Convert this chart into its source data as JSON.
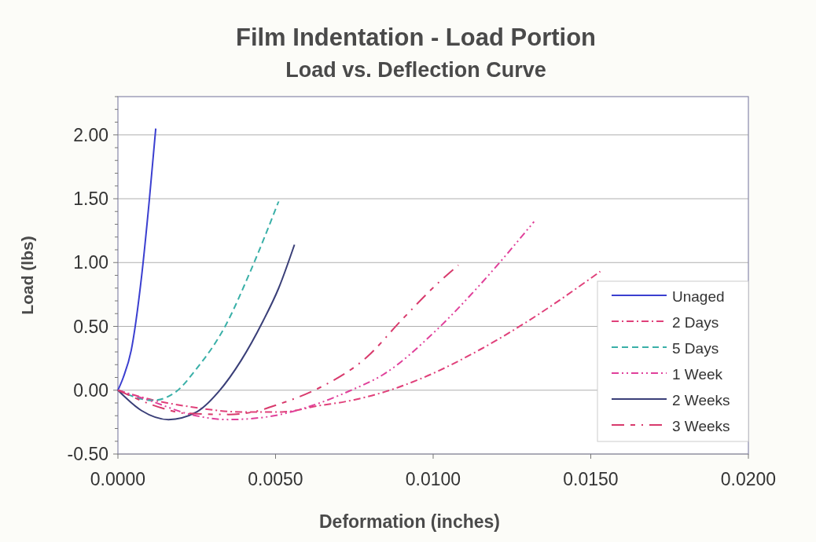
{
  "chart_data": {
    "type": "line",
    "title": "Film Indentation - Load Portion",
    "subtitle": "Load vs. Deflection Curve",
    "xlabel": "Deformation (inches)",
    "ylabel": "Load (lbs)",
    "xlim": [
      0,
      0.02
    ],
    "xticks": [
      {
        "value": 0,
        "label": "0.0000"
      },
      {
        "value": 0.005,
        "label": "0.0050"
      },
      {
        "value": 0.01,
        "label": "0.0100"
      },
      {
        "value": 0.015,
        "label": "0.0150"
      },
      {
        "value": 0.02,
        "label": "0.0200"
      }
    ],
    "ylim": [
      -0.5,
      2.3
    ],
    "yticks": [
      {
        "value": -0.5,
        "label": "-0.50"
      },
      {
        "value": -0.4,
        "label": null
      },
      {
        "value": -0.3,
        "label": null
      },
      {
        "value": -0.2,
        "label": null
      },
      {
        "value": -0.1,
        "label": null
      },
      {
        "value": 0,
        "label": "0.00"
      },
      {
        "value": 0.1,
        "label": null
      },
      {
        "value": 0.2,
        "label": null
      },
      {
        "value": 0.3,
        "label": null
      },
      {
        "value": 0.4,
        "label": null
      },
      {
        "value": 0.5,
        "label": "0.50"
      },
      {
        "value": 0.6,
        "label": null
      },
      {
        "value": 0.7,
        "label": null
      },
      {
        "value": 0.8,
        "label": null
      },
      {
        "value": 0.9,
        "label": null
      },
      {
        "value": 1,
        "label": "1.00"
      },
      {
        "value": 1.1,
        "label": null
      },
      {
        "value": 1.2,
        "label": null
      },
      {
        "value": 1.3,
        "label": null
      },
      {
        "value": 1.4,
        "label": null
      },
      {
        "value": 1.5,
        "label": "1.50"
      },
      {
        "value": 1.6,
        "label": null
      },
      {
        "value": 1.7,
        "label": null
      },
      {
        "value": 1.8,
        "label": null
      },
      {
        "value": 1.9,
        "label": null
      },
      {
        "value": 2,
        "label": "2.00"
      },
      {
        "value": 2.1,
        "label": null
      },
      {
        "value": 2.2,
        "label": null
      },
      {
        "value": 2.3,
        "label": null
      }
    ],
    "grid": "y",
    "legend": "bottom right",
    "series": [
      {
        "name": "Unaged",
        "color": "#3b3fd0",
        "line_style": "solid",
        "x": [
          0,
          0.00017,
          0.00042,
          0.00075,
          0.001,
          0.0012
        ],
        "values": [
          0,
          0.1,
          0.31,
          0.89,
          1.5,
          2.05
        ]
      },
      {
        "name": "2 Days",
        "color": "#e0407a",
        "line_style": "dashdot",
        "x": [
          0,
          0.00083,
          0.0023,
          0.0039,
          0.0052,
          0.0064,
          0.0072,
          0.0085,
          0.0097,
          0.0115,
          0.013,
          0.0153
        ],
        "values": [
          0,
          -0.06,
          -0.13,
          -0.17,
          -0.17,
          -0.12,
          -0.09,
          -0.01,
          0.1,
          0.32,
          0.54,
          0.93
        ]
      },
      {
        "name": "5 Days",
        "color": "#3ab0a8",
        "line_style": "dashed",
        "x": [
          0,
          0.0011,
          0.0018,
          0.0025,
          0.0034,
          0.0042,
          0.0051
        ],
        "values": [
          0,
          -0.08,
          -0.02,
          0.17,
          0.5,
          0.93,
          1.48
        ]
      },
      {
        "name": "1 Week",
        "color": "#e0409a",
        "line_style": "dashdotdot",
        "x": [
          0,
          0.001,
          0.0023,
          0.0035,
          0.0047,
          0.0064,
          0.0074,
          0.0084,
          0.0101,
          0.0115,
          0.0132
        ],
        "values": [
          0,
          -0.08,
          -0.19,
          -0.23,
          -0.21,
          -0.1,
          0,
          0.12,
          0.47,
          0.83,
          1.32
        ]
      },
      {
        "name": "2 Weeks",
        "color": "#3a3f78",
        "line_style": "solid",
        "x": [
          0,
          0.00075,
          0.0016,
          0.0025,
          0.0032,
          0.0039,
          0.0046,
          0.0051,
          0.0056
        ],
        "values": [
          0,
          -0.16,
          -0.23,
          -0.17,
          -0.01,
          0.23,
          0.54,
          0.8,
          1.14
        ]
      },
      {
        "name": "3 Weeks",
        "color": "#d83a6c",
        "line_style": "longdashdot",
        "x": [
          0,
          0.0014,
          0.0021,
          0.0035,
          0.0043,
          0.0051,
          0.0064,
          0.0079,
          0.009,
          0.0102,
          0.0108
        ],
        "values": [
          0,
          -0.14,
          -0.18,
          -0.19,
          -0.17,
          -0.11,
          0.02,
          0.26,
          0.55,
          0.85,
          0.98
        ]
      }
    ]
  }
}
